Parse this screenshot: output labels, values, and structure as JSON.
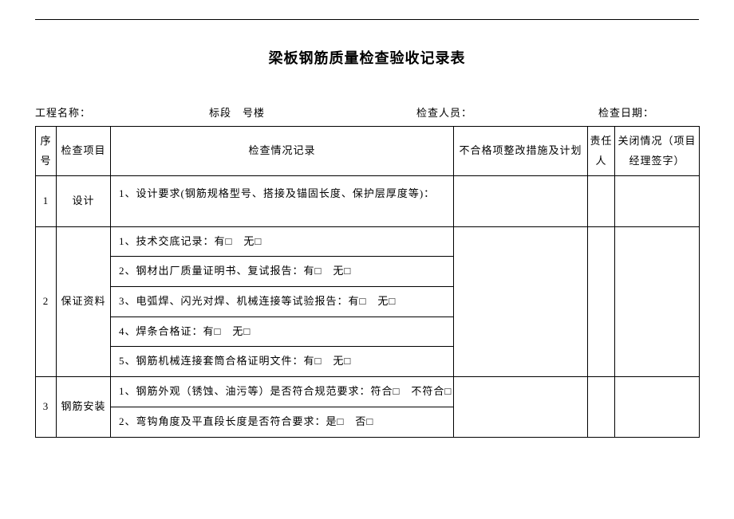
{
  "title": "梁板钢筋质量检查验收记录表",
  "meta": {
    "project_label": "工程名称：",
    "section_label": "标段　号楼",
    "inspector_label": "检查人员：",
    "date_label": "检查日期："
  },
  "headers": {
    "seq": "序号",
    "item": "检查项目",
    "record": "检查情况记录",
    "plan": "不合格项整改措施及计划",
    "responsible": "责任人",
    "closure": "关闭情况（项目经理签字）"
  },
  "rows": {
    "r1": {
      "seq": "1",
      "item": "设计",
      "rec1": "1、设计要求(钢筋规格型号、搭接及锚固长度、保护层厚度等)："
    },
    "r2": {
      "seq": "2",
      "item": "保证资料",
      "rec1": "1、技术交底记录：有□　无□",
      "rec2": "2、钢材出厂质量证明书、复试报告：有□　无□",
      "rec3": "3、电弧焊、闪光对焊、机械连接等试验报告：有□　无□",
      "rec4": "4、焊条合格证：有□　无□",
      "rec5": "5、钢筋机械连接套筒合格证明文件：有□　无□"
    },
    "r3": {
      "seq": "3",
      "item": "钢筋安装",
      "rec1": "1、钢筋外观（锈蚀、油污等）是否符合规范要求：符合□　不符合□",
      "rec2": "2、弯钩角度及平直段长度是否符合要求：是□　否□"
    }
  }
}
